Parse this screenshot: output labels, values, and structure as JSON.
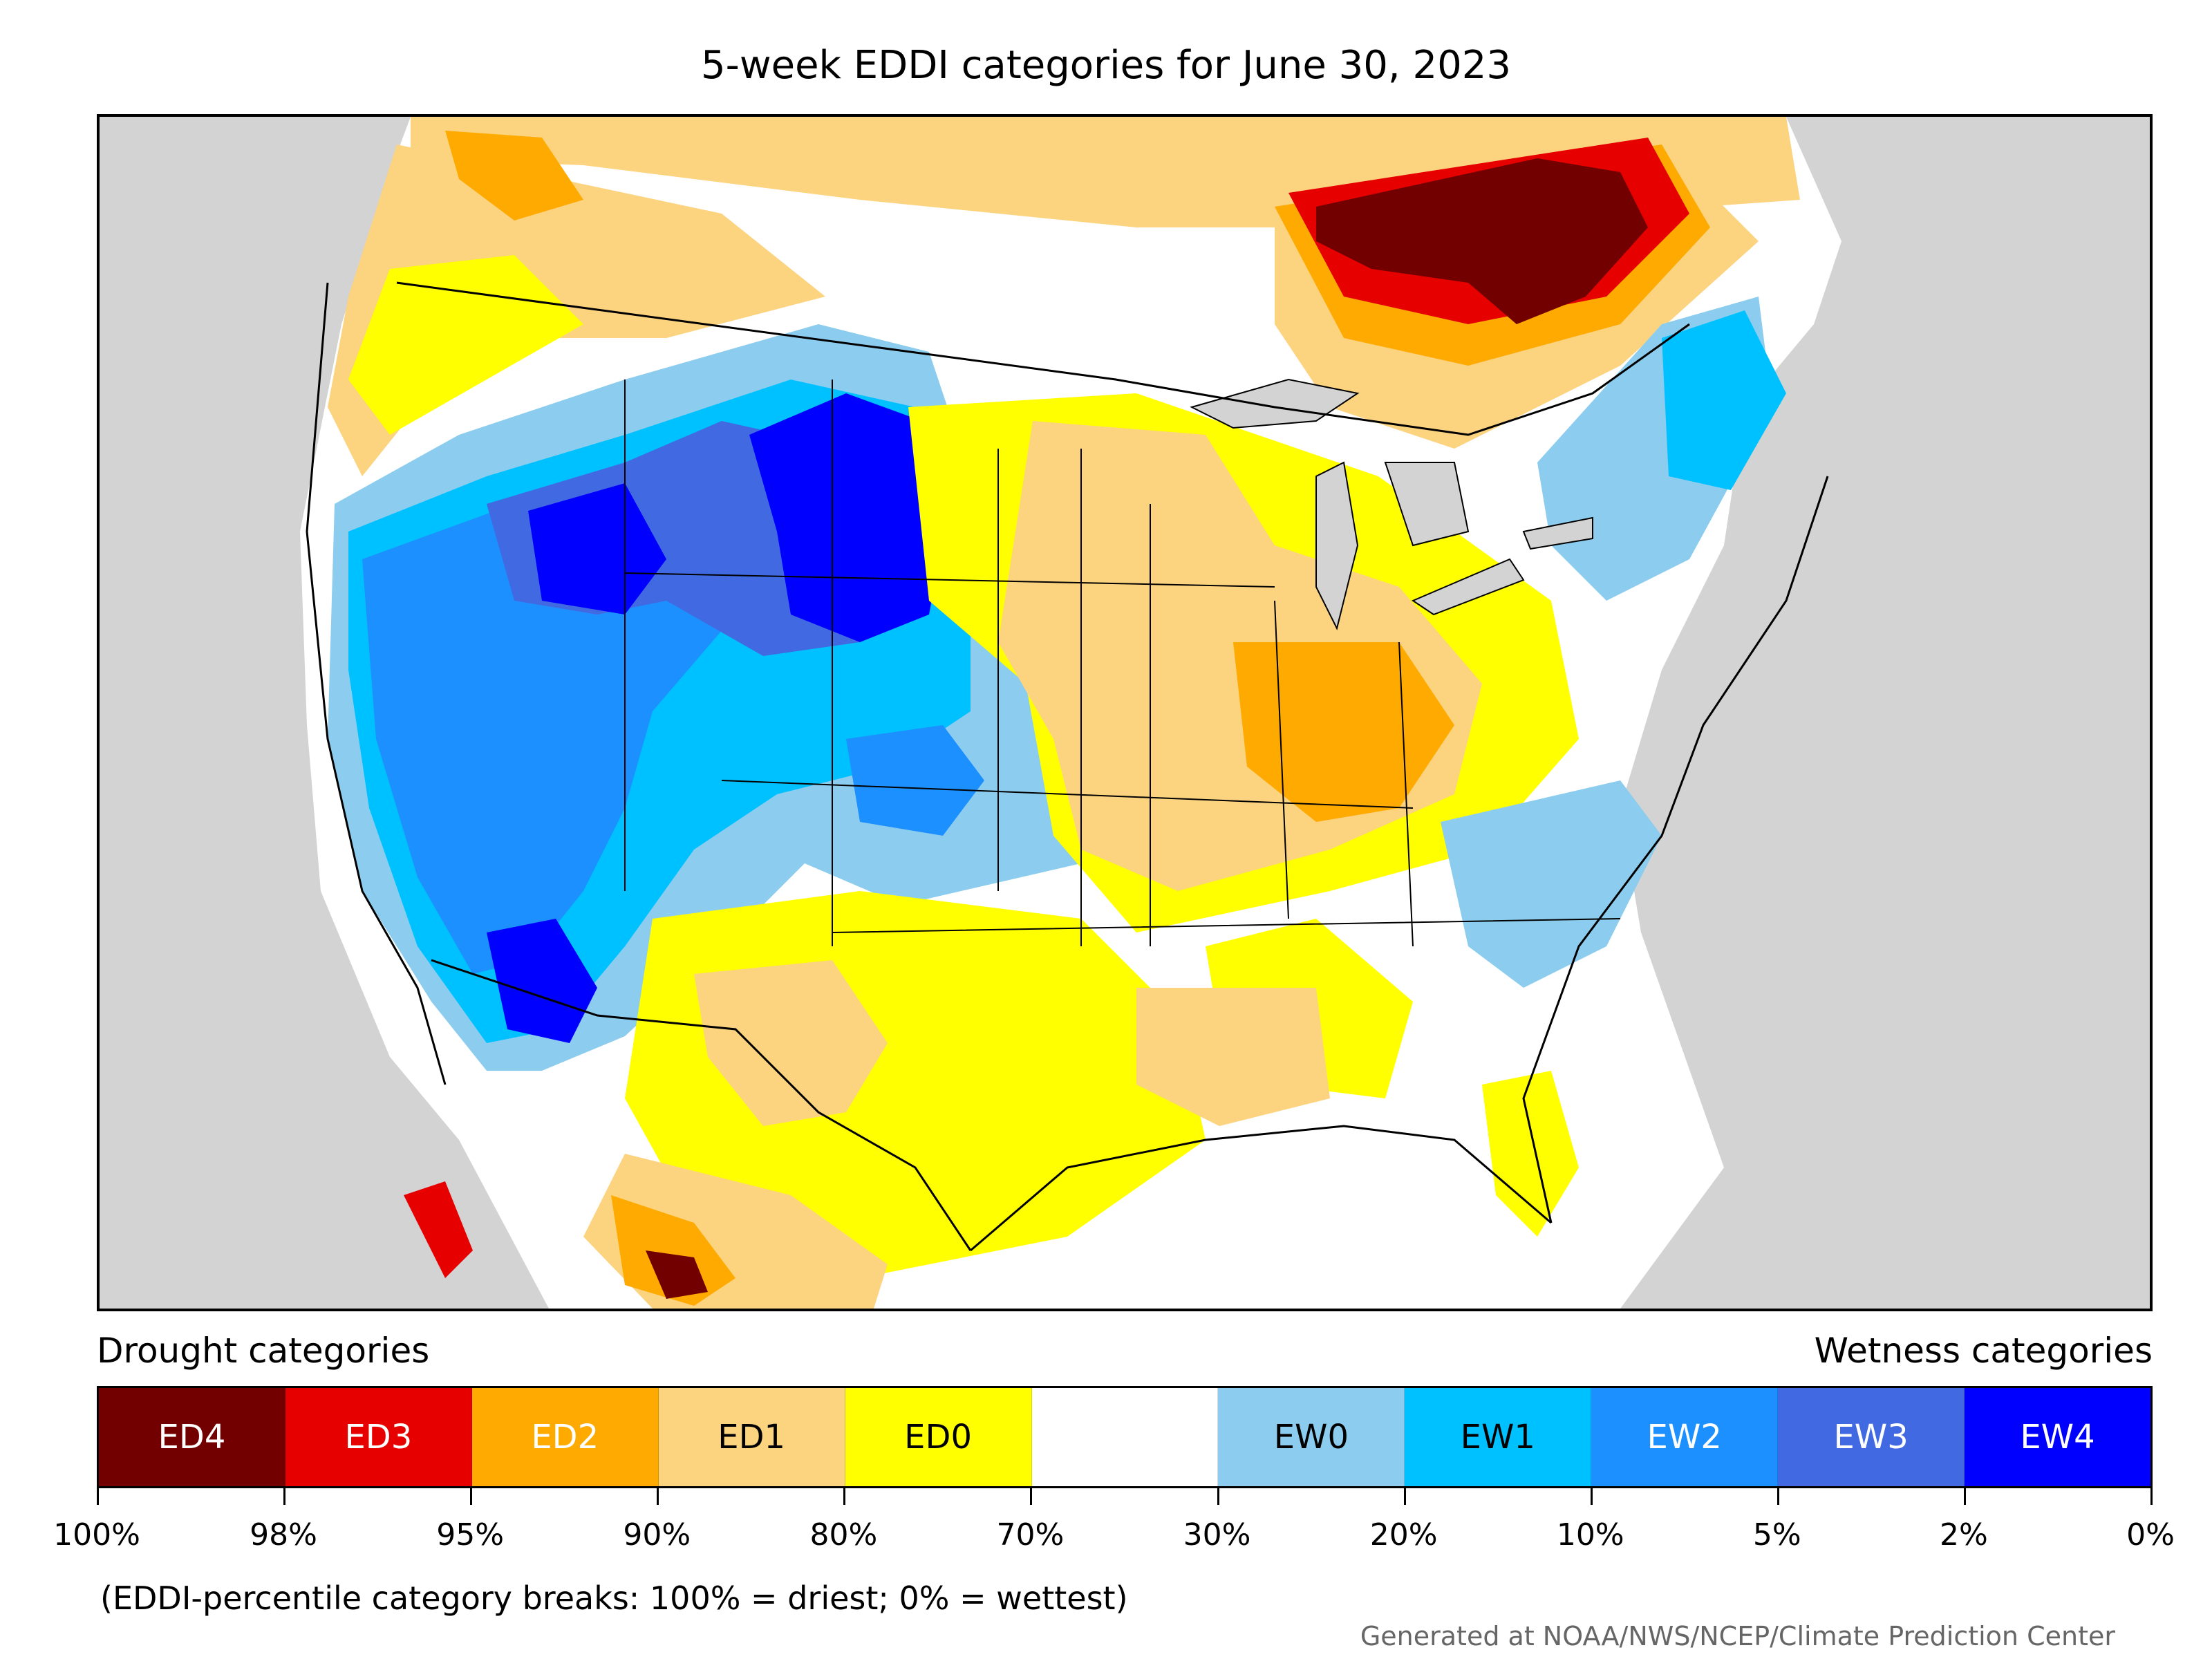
{
  "title": "5-week EDDI categories for June 30, 2023",
  "legend": {
    "drought_heading": "Drought categories",
    "wetness_heading": "Wetness categories",
    "categories": [
      {
        "label": "ED4",
        "color": "#730000",
        "text_color": "#ffffff"
      },
      {
        "label": "ED3",
        "color": "#e60000",
        "text_color": "#ffffff"
      },
      {
        "label": "ED2",
        "color": "#ffaa00",
        "text_color": "#ffffff"
      },
      {
        "label": "ED1",
        "color": "#fcd37f",
        "text_color": "#000000"
      },
      {
        "label": "ED0",
        "color": "#ffff00",
        "text_color": "#000000"
      },
      {
        "label": "",
        "color": "#ffffff",
        "text_color": "#000000"
      },
      {
        "label": "EW0",
        "color": "#8ccdef",
        "text_color": "#000000"
      },
      {
        "label": "EW1",
        "color": "#00c1ff",
        "text_color": "#000000"
      },
      {
        "label": "EW2",
        "color": "#1d90ff",
        "text_color": "#ffffff"
      },
      {
        "label": "EW3",
        "color": "#4169e1",
        "text_color": "#ffffff"
      },
      {
        "label": "EW4",
        "color": "#0000ff",
        "text_color": "#ffffff"
      }
    ],
    "tick_labels": [
      "100%",
      "98%",
      "95%",
      "90%",
      "80%",
      "70%",
      "30%",
      "20%",
      "10%",
      "5%",
      "2%",
      "0%"
    ]
  },
  "note": "(EDDI-percentile category breaks: 100% = driest; 0% = wettest)",
  "credit": "Generated at NOAA/NWS/NCEP/Climate Prediction Center",
  "map": {
    "background_color": "#d3d3d3",
    "regions": [
      {
        "name": "ontario-quebec-ed4",
        "category": "ED4"
      },
      {
        "name": "great-basin-wet",
        "category": "EW3"
      },
      {
        "name": "wyoming-wet",
        "category": "EW4"
      },
      {
        "name": "arizona-wet",
        "category": "EW4"
      },
      {
        "name": "midwest-dry",
        "category": "ED1"
      },
      {
        "name": "illinois-dry",
        "category": "ED2"
      },
      {
        "name": "texas-dry",
        "category": "ED0"
      },
      {
        "name": "sonora-dry",
        "category": "ED4"
      },
      {
        "name": "new-england-wet",
        "category": "EW1"
      },
      {
        "name": "carolinas-wet",
        "category": "EW0"
      }
    ]
  }
}
